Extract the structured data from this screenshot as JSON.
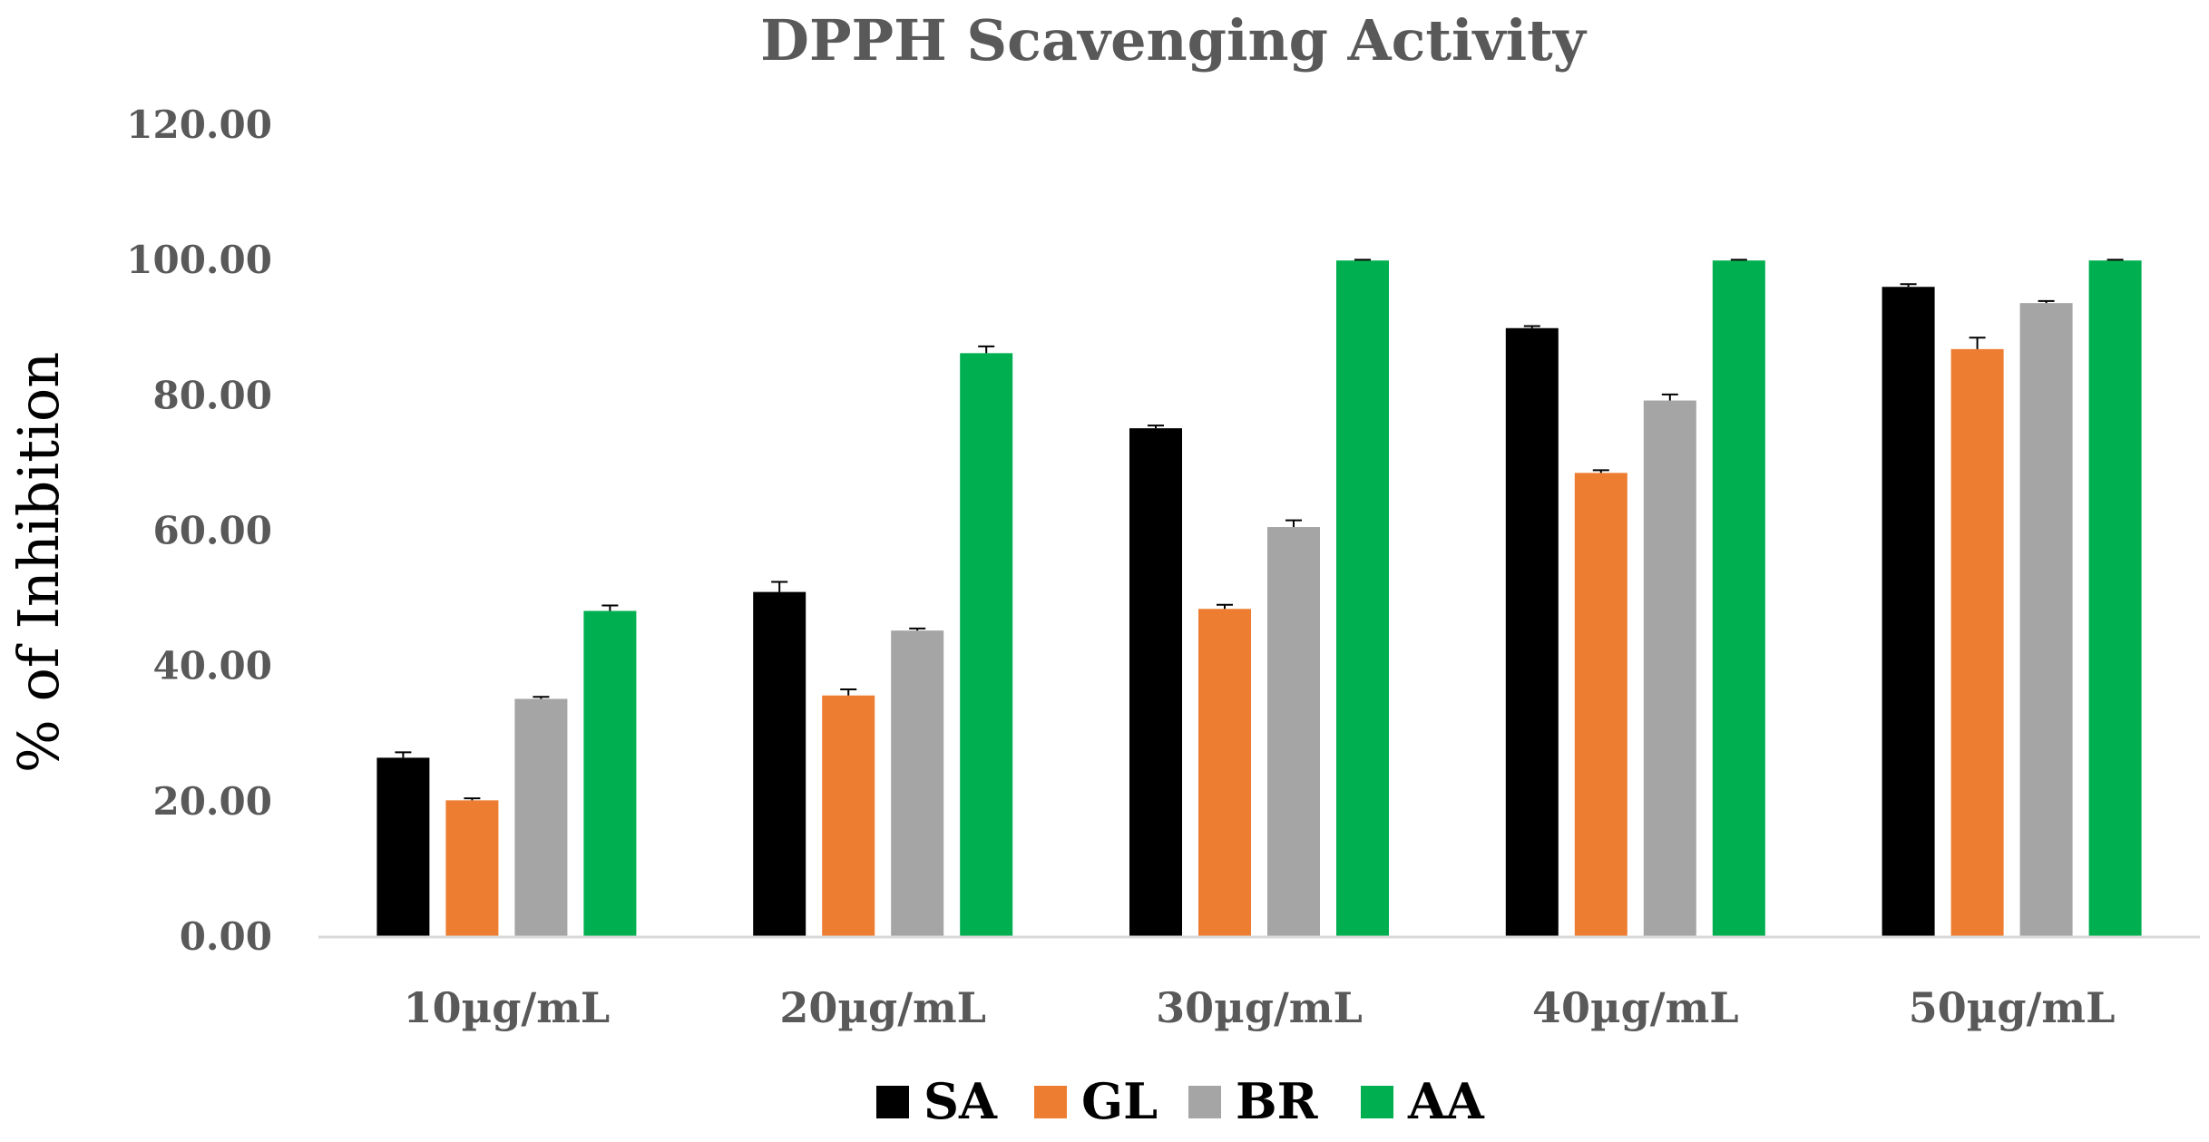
{
  "chart_data": {
    "type": "bar",
    "title": "DPPH Scavenging Activity",
    "xlabel": "",
    "ylabel": "% of Inhibition",
    "ylim": [
      0,
      120
    ],
    "yticks": [
      "0.00",
      "20.00",
      "40.00",
      "60.00",
      "80.00",
      "100.00",
      "120.00"
    ],
    "ytick_values": [
      0,
      20,
      40,
      60,
      80,
      100,
      120
    ],
    "grid": false,
    "legend_position": "bottom",
    "categories": [
      "10µg/mL",
      "20µg/mL",
      "30µg/mL",
      "40µg/mL",
      "50µg/mL"
    ],
    "series": [
      {
        "name": "SA",
        "color": "#000000",
        "values": [
          26.5,
          51.0,
          75.2,
          90.0,
          96.1
        ],
        "errors": [
          0.8,
          1.5,
          0.4,
          0.3,
          0.4
        ]
      },
      {
        "name": "GL",
        "color": "#ED7D31",
        "values": [
          20.2,
          35.7,
          48.5,
          68.6,
          86.9
        ],
        "errors": [
          0.3,
          0.9,
          0.6,
          0.4,
          1.7
        ]
      },
      {
        "name": "BR",
        "color": "#A5A5A5",
        "values": [
          35.2,
          45.3,
          60.6,
          79.3,
          93.7
        ],
        "errors": [
          0.3,
          0.3,
          1.0,
          0.9,
          0.3
        ]
      },
      {
        "name": "AA",
        "color": "#00B050",
        "values": [
          48.2,
          86.3,
          100.0,
          100.0,
          100.0
        ],
        "errors": [
          0.8,
          1.0,
          0.1,
          0.1,
          0.1
        ]
      }
    ]
  }
}
